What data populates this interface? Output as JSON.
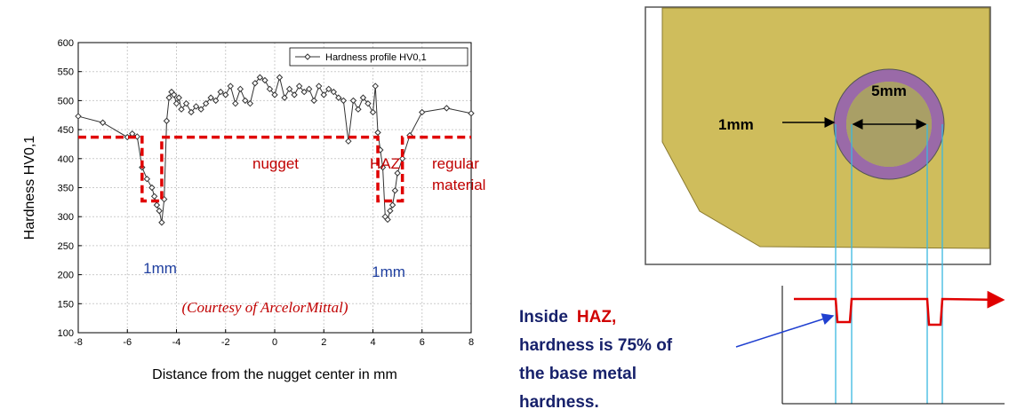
{
  "chart_data": {
    "type": "line",
    "xlabel": "Distance from the nugget center in mm",
    "ylabel": "Hardness HV0,1",
    "xlim": [
      -8,
      8
    ],
    "xticks": [
      -8,
      -6,
      -4,
      -2,
      0,
      2,
      4,
      6,
      8
    ],
    "ylim": [
      100,
      600
    ],
    "yticks": [
      100,
      150,
      200,
      250,
      300,
      350,
      400,
      450,
      500,
      550,
      600
    ],
    "grid": true,
    "legend": "upper right",
    "series": [
      {
        "name": "Hardness profile HV0,1",
        "color": "#333333",
        "marker": "diamond",
        "x": [
          -8,
          -7,
          -6,
          -5.8,
          -5.6,
          -5.4,
          -5.2,
          -5.0,
          -4.9,
          -4.8,
          -4.7,
          -4.6,
          -4.5,
          -4.4,
          -4.3,
          -4.2,
          -4.1,
          -4.0,
          -3.9,
          -3.8,
          -3.6,
          -3.4,
          -3.2,
          -3.0,
          -2.8,
          -2.6,
          -2.4,
          -2.2,
          -2.0,
          -1.8,
          -1.6,
          -1.4,
          -1.2,
          -1.0,
          -0.8,
          -0.6,
          -0.4,
          -0.2,
          0,
          0.2,
          0.4,
          0.6,
          0.8,
          1.0,
          1.2,
          1.4,
          1.6,
          1.8,
          2.0,
          2.2,
          2.4,
          2.6,
          2.8,
          3.0,
          3.2,
          3.4,
          3.6,
          3.8,
          4.0,
          4.1,
          4.2,
          4.3,
          4.4,
          4.5,
          4.6,
          4.7,
          4.8,
          4.9,
          5.0,
          5.2,
          5.5,
          6,
          7,
          8
        ],
        "values": [
          473,
          462,
          437,
          443,
          438,
          385,
          365,
          350,
          335,
          320,
          310,
          290,
          330,
          465,
          505,
          515,
          510,
          495,
          505,
          485,
          495,
          480,
          490,
          485,
          495,
          505,
          500,
          515,
          510,
          525,
          495,
          520,
          500,
          495,
          530,
          540,
          535,
          520,
          510,
          540,
          505,
          520,
          510,
          525,
          515,
          520,
          500,
          525,
          510,
          520,
          515,
          505,
          500,
          430,
          500,
          485,
          505,
          495,
          480,
          525,
          445,
          415,
          385,
          300,
          295,
          310,
          320,
          345,
          375,
          400,
          440,
          480,
          487,
          478
        ]
      },
      {
        "color": "#e00000",
        "dashed": true,
        "x": [
          -8,
          -5.4,
          -5.4,
          -4.6,
          -4.6,
          4.2,
          4.2,
          5.2,
          5.2,
          8
        ],
        "values": [
          437,
          437,
          327,
          327,
          437,
          437,
          327,
          327,
          437,
          437
        ]
      }
    ],
    "annotations": [
      "nugget",
      "HAZ",
      "regular",
      "material",
      "1mm",
      "1mm",
      "(Courtesy of ArcelorMittal)"
    ]
  },
  "diagram": {
    "outer_label": "5mm",
    "ring_label": "1mm"
  },
  "note": {
    "start": "Inside",
    "highlight": "HAZ,",
    "lines": [
      "hardness is 75% of",
      "the base metal",
      "hardness."
    ]
  }
}
